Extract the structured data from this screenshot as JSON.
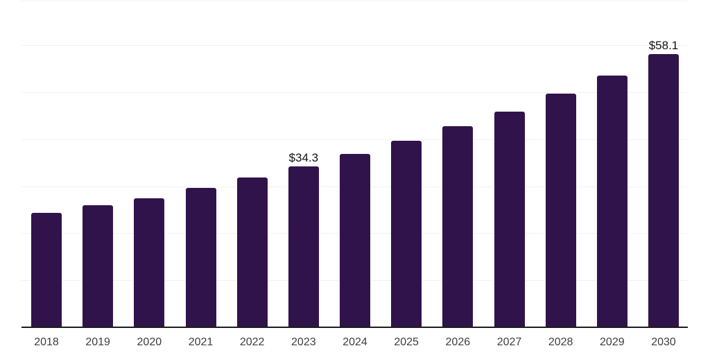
{
  "chart_data": {
    "type": "bar",
    "title": "",
    "xlabel": "",
    "ylabel": "",
    "categories": [
      "2018",
      "2019",
      "2020",
      "2021",
      "2022",
      "2023",
      "2024",
      "2025",
      "2026",
      "2027",
      "2028",
      "2029",
      "2030"
    ],
    "values": [
      24.4,
      26.0,
      27.4,
      29.6,
      31.9,
      34.3,
      36.9,
      39.7,
      42.8,
      45.9,
      49.8,
      53.6,
      58.1
    ],
    "bar_labels": [
      "",
      "",
      "",
      "",
      "",
      "$34.3",
      "",
      "",
      "",
      "",
      "",
      "",
      "$58.1"
    ],
    "ylim": [
      0,
      70
    ],
    "grid_step": 10,
    "grid": "horizontal",
    "legend": "none",
    "y_axis_labels_visible": false,
    "colors": {
      "bar": "#31134B",
      "gridline": "#F2F2F2",
      "axis_line": "#1C1C1C",
      "tick_label": "#3D3D3D",
      "value_label": "#111111",
      "background": "#FFFFFF"
    }
  }
}
